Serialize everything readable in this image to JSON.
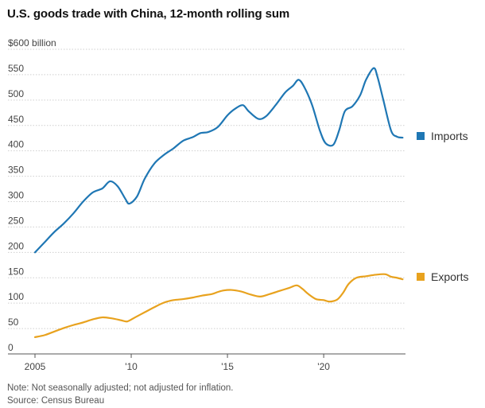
{
  "title": "U.S. goods trade with China, 12-month rolling sum",
  "note": "Note: Not seasonally adjusted; not adjusted for inflation.",
  "source": "Source: Census Bureau",
  "chart_data": {
    "type": "line",
    "title": "U.S. goods trade with China, 12-month rolling sum",
    "ylabel": "",
    "xlabel": "",
    "ylim": [
      0,
      600
    ],
    "xlim": [
      2005.0,
      2024.25
    ],
    "grid": true,
    "legend_placement": "right",
    "y_ticks": [
      {
        "value": 0,
        "label": "0"
      },
      {
        "value": 50,
        "label": "50"
      },
      {
        "value": 100,
        "label": "100"
      },
      {
        "value": 150,
        "label": "150"
      },
      {
        "value": 200,
        "label": "200"
      },
      {
        "value": 250,
        "label": "250"
      },
      {
        "value": 300,
        "label": "300"
      },
      {
        "value": 350,
        "label": "350"
      },
      {
        "value": 400,
        "label": "400"
      },
      {
        "value": 450,
        "label": "450"
      },
      {
        "value": 500,
        "label": "500"
      },
      {
        "value": 550,
        "label": "550"
      },
      {
        "value": 600,
        "label": "$600 billion"
      }
    ],
    "x_ticks": [
      {
        "value": 2005,
        "label": "2005"
      },
      {
        "value": 2010,
        "label": "'10"
      },
      {
        "value": 2015,
        "label": "'15"
      },
      {
        "value": 2020,
        "label": "'20"
      }
    ],
    "series": [
      {
        "name": "Imports",
        "color": "#1f77b4",
        "points": [
          [
            2005.0,
            200
          ],
          [
            2005.5,
            220
          ],
          [
            2006.0,
            240
          ],
          [
            2006.5,
            257
          ],
          [
            2007.0,
            277
          ],
          [
            2007.5,
            300
          ],
          [
            2008.0,
            318
          ],
          [
            2008.5,
            326
          ],
          [
            2008.9,
            340
          ],
          [
            2009.3,
            330
          ],
          [
            2009.7,
            305
          ],
          [
            2009.9,
            296
          ],
          [
            2010.3,
            310
          ],
          [
            2010.7,
            345
          ],
          [
            2011.2,
            375
          ],
          [
            2011.7,
            392
          ],
          [
            2012.2,
            405
          ],
          [
            2012.7,
            420
          ],
          [
            2013.2,
            427
          ],
          [
            2013.6,
            435
          ],
          [
            2014.0,
            437
          ],
          [
            2014.5,
            447
          ],
          [
            2015.0,
            470
          ],
          [
            2015.4,
            483
          ],
          [
            2015.8,
            490
          ],
          [
            2016.1,
            478
          ],
          [
            2016.6,
            463
          ],
          [
            2017.0,
            468
          ],
          [
            2017.5,
            490
          ],
          [
            2018.0,
            515
          ],
          [
            2018.4,
            528
          ],
          [
            2018.7,
            540
          ],
          [
            2019.0,
            525
          ],
          [
            2019.4,
            490
          ],
          [
            2019.8,
            440
          ],
          [
            2020.1,
            415
          ],
          [
            2020.5,
            412
          ],
          [
            2020.8,
            440
          ],
          [
            2021.1,
            478
          ],
          [
            2021.5,
            488
          ],
          [
            2021.9,
            510
          ],
          [
            2022.2,
            540
          ],
          [
            2022.6,
            563
          ],
          [
            2022.8,
            545
          ],
          [
            2023.1,
            500
          ],
          [
            2023.5,
            440
          ],
          [
            2023.8,
            428
          ],
          [
            2024.1,
            426
          ]
        ]
      },
      {
        "name": "Exports",
        "color": "#e8a21e",
        "points": [
          [
            2005.0,
            33
          ],
          [
            2005.5,
            37
          ],
          [
            2006.0,
            44
          ],
          [
            2006.5,
            51
          ],
          [
            2007.0,
            57
          ],
          [
            2007.5,
            62
          ],
          [
            2008.0,
            68
          ],
          [
            2008.5,
            72
          ],
          [
            2009.0,
            70
          ],
          [
            2009.5,
            66
          ],
          [
            2009.8,
            64
          ],
          [
            2010.2,
            72
          ],
          [
            2010.7,
            82
          ],
          [
            2011.2,
            92
          ],
          [
            2011.7,
            101
          ],
          [
            2012.2,
            106
          ],
          [
            2012.7,
            108
          ],
          [
            2013.2,
            111
          ],
          [
            2013.7,
            115
          ],
          [
            2014.2,
            118
          ],
          [
            2014.5,
            122
          ],
          [
            2014.8,
            125
          ],
          [
            2015.2,
            126
          ],
          [
            2015.7,
            123
          ],
          [
            2016.2,
            117
          ],
          [
            2016.7,
            113
          ],
          [
            2017.2,
            118
          ],
          [
            2017.7,
            124
          ],
          [
            2018.2,
            130
          ],
          [
            2018.6,
            135
          ],
          [
            2018.9,
            128
          ],
          [
            2019.2,
            118
          ],
          [
            2019.6,
            108
          ],
          [
            2020.0,
            106
          ],
          [
            2020.3,
            103
          ],
          [
            2020.7,
            107
          ],
          [
            2021.0,
            120
          ],
          [
            2021.3,
            138
          ],
          [
            2021.7,
            150
          ],
          [
            2022.2,
            153
          ],
          [
            2022.7,
            156
          ],
          [
            2023.2,
            157
          ],
          [
            2023.5,
            152
          ],
          [
            2023.8,
            150
          ],
          [
            2024.1,
            147
          ]
        ]
      }
    ]
  }
}
